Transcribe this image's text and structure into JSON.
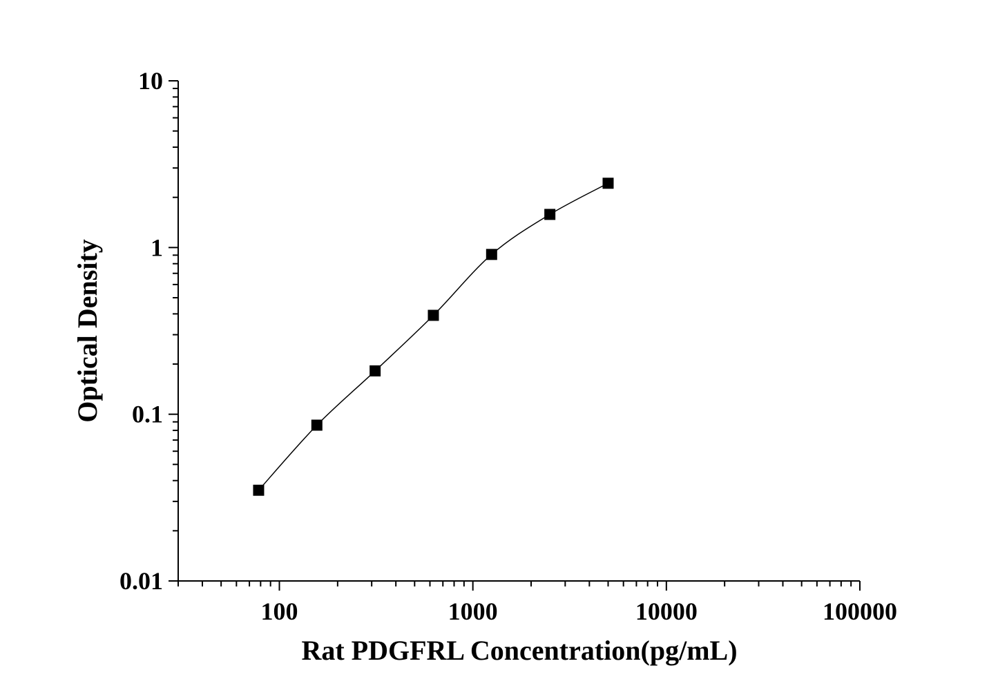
{
  "chart_data": {
    "type": "line",
    "title": "",
    "xlabel": "Rat PDGFRL Concentration(pg/mL)",
    "ylabel": "Optical Density",
    "xscale": "log",
    "yscale": "log",
    "xlim": [
      30,
      100000
    ],
    "ylim": [
      0.01,
      10
    ],
    "xticks": [
      100,
      1000,
      10000,
      100000
    ],
    "xtick_labels": [
      "100",
      "1000",
      "10000",
      "100000"
    ],
    "yticks": [
      0.01,
      0.1,
      1,
      10
    ],
    "ytick_labels": [
      "0.01",
      "0.1",
      "1",
      "10"
    ],
    "grid": false,
    "marker": "square",
    "color": "#000000",
    "series": [
      {
        "x": [
          78.125,
          156.25,
          312.5,
          625,
          1250,
          2500,
          5000
        ],
        "y": [
          0.035,
          0.086,
          0.182,
          0.392,
          0.909,
          1.58,
          2.43
        ]
      }
    ]
  }
}
